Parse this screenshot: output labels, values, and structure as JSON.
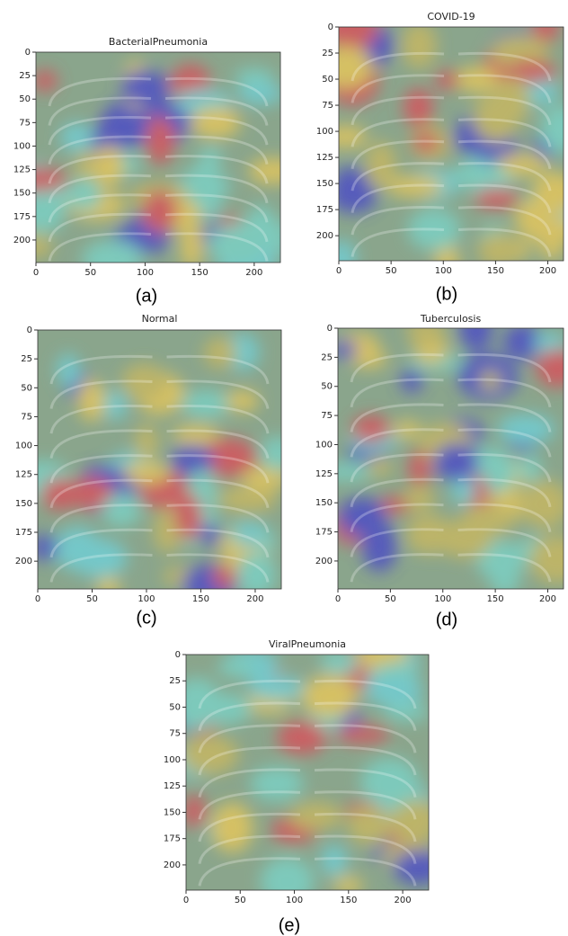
{
  "panels": [
    {
      "title": "BacterialPneumonia",
      "caption": "(a)",
      "xlim": [
        0,
        224
      ],
      "ylim": [
        0,
        224
      ],
      "xticks": [
        0,
        50,
        100,
        150,
        200
      ],
      "yticks": [
        0,
        25,
        50,
        75,
        100,
        125,
        150,
        175,
        200
      ]
    },
    {
      "title": "COVID-19",
      "caption": "(b)",
      "xlim": [
        0,
        215
      ],
      "ylim": [
        0,
        224
      ],
      "xticks": [
        0,
        50,
        100,
        150,
        200
      ],
      "yticks": [
        0,
        25,
        50,
        75,
        100,
        125,
        150,
        175,
        200
      ]
    },
    {
      "title": "Normal",
      "caption": "(c)",
      "xlim": [
        0,
        224
      ],
      "ylim": [
        0,
        224
      ],
      "xticks": [
        0,
        50,
        100,
        150,
        200
      ],
      "yticks": [
        0,
        25,
        50,
        75,
        100,
        125,
        150,
        175,
        200
      ]
    },
    {
      "title": "Tuberculosis",
      "caption": "(d)",
      "xlim": [
        0,
        215
      ],
      "ylim": [
        0,
        224
      ],
      "xticks": [
        0,
        50,
        100,
        150,
        200
      ],
      "yticks": [
        0,
        25,
        50,
        75,
        100,
        125,
        150,
        175,
        200
      ]
    },
    {
      "title": "ViralPneumonia",
      "caption": "(e)",
      "xlim": [
        0,
        224
      ],
      "ylim": [
        0,
        224
      ],
      "xticks": [
        0,
        50,
        100,
        150,
        200
      ],
      "yticks": [
        0,
        25,
        50,
        75,
        100,
        125,
        150,
        175,
        200
      ]
    }
  ]
}
